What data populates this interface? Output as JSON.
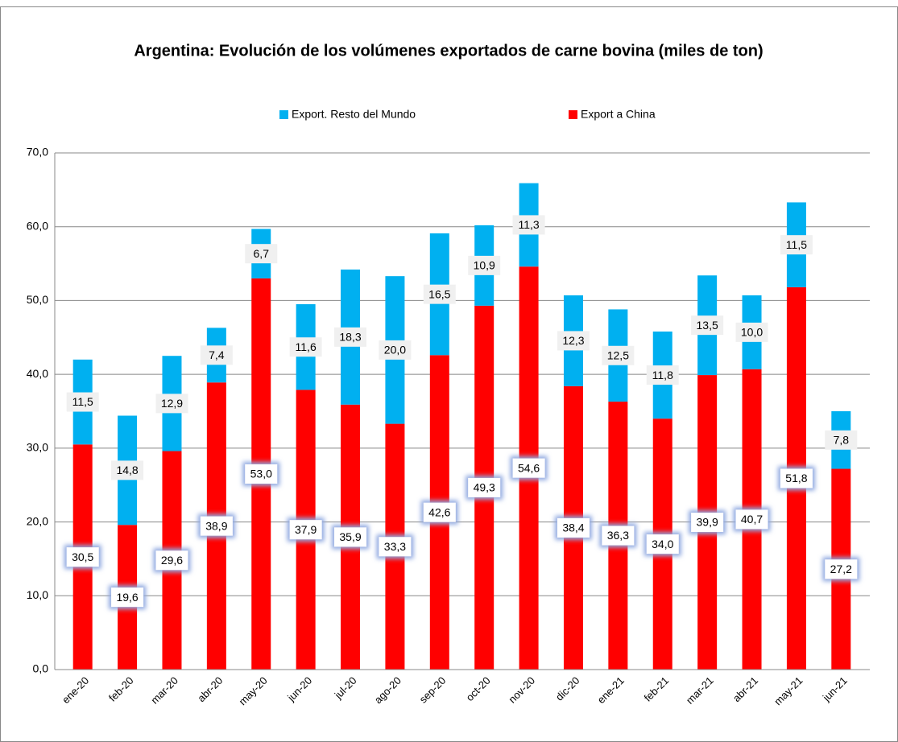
{
  "chart_data": {
    "type": "stacked_bar",
    "title": "Argentina: Evolución de los volúmenes exportados de carne bovina (miles de ton)",
    "categories": [
      "ene-20",
      "feb-20",
      "mar-20",
      "abr-20",
      "may-20",
      "jun-20",
      "jul-20",
      "ago-20",
      "sep-20",
      "oct-20",
      "nov-20",
      "dic-20",
      "ene-21",
      "feb-21",
      "mar-21",
      "abr-21",
      "may-21",
      "jun-21"
    ],
    "series": [
      {
        "name": "Export. Resto del Mundo",
        "color": "#00b0f0",
        "values": [
          11.5,
          14.8,
          12.9,
          7.4,
          6.7,
          11.6,
          18.3,
          20,
          16.5,
          10.9,
          11.3,
          12.3,
          12.5,
          11.8,
          13.5,
          10,
          11.5,
          7.8
        ],
        "value_labels": [
          "11,5",
          "14,8",
          "12,9",
          "7,4",
          "6,7",
          "11,6",
          "18,3",
          "20,0",
          "16,5",
          "10,9",
          "11,3",
          "12,3",
          "12,5",
          "11,8",
          "13,5",
          "10,0",
          "11,5",
          "7,8"
        ]
      },
      {
        "name": "Export a China",
        "color": "#ff0000",
        "values": [
          30.5,
          19.6,
          29.6,
          38.9,
          53,
          37.9,
          35.9,
          33.3,
          42.6,
          49.3,
          54.6,
          38.4,
          36.3,
          34,
          39.9,
          40.7,
          51.8,
          27.2
        ],
        "value_labels": [
          "30,5",
          "19,6",
          "29,6",
          "38,9",
          "53,0",
          "37,9",
          "35,9",
          "33,3",
          "42,6",
          "49,3",
          "54,6",
          "38,4",
          "36,3",
          "34,0",
          "39,9",
          "40,7",
          "51,8",
          "27,2"
        ]
      }
    ],
    "ylim": [
      0,
      70
    ],
    "yticks": [
      {
        "value": 0,
        "label": "0,0"
      },
      {
        "value": 10,
        "label": "10,0"
      },
      {
        "value": 20,
        "label": "20,0"
      },
      {
        "value": 30,
        "label": "30,0"
      },
      {
        "value": 40,
        "label": "40,0"
      },
      {
        "value": 50,
        "label": "50,0"
      },
      {
        "value": 60,
        "label": "60,0"
      },
      {
        "value": 70,
        "label": "70,0"
      }
    ],
    "grid": true,
    "legend": "top"
  }
}
